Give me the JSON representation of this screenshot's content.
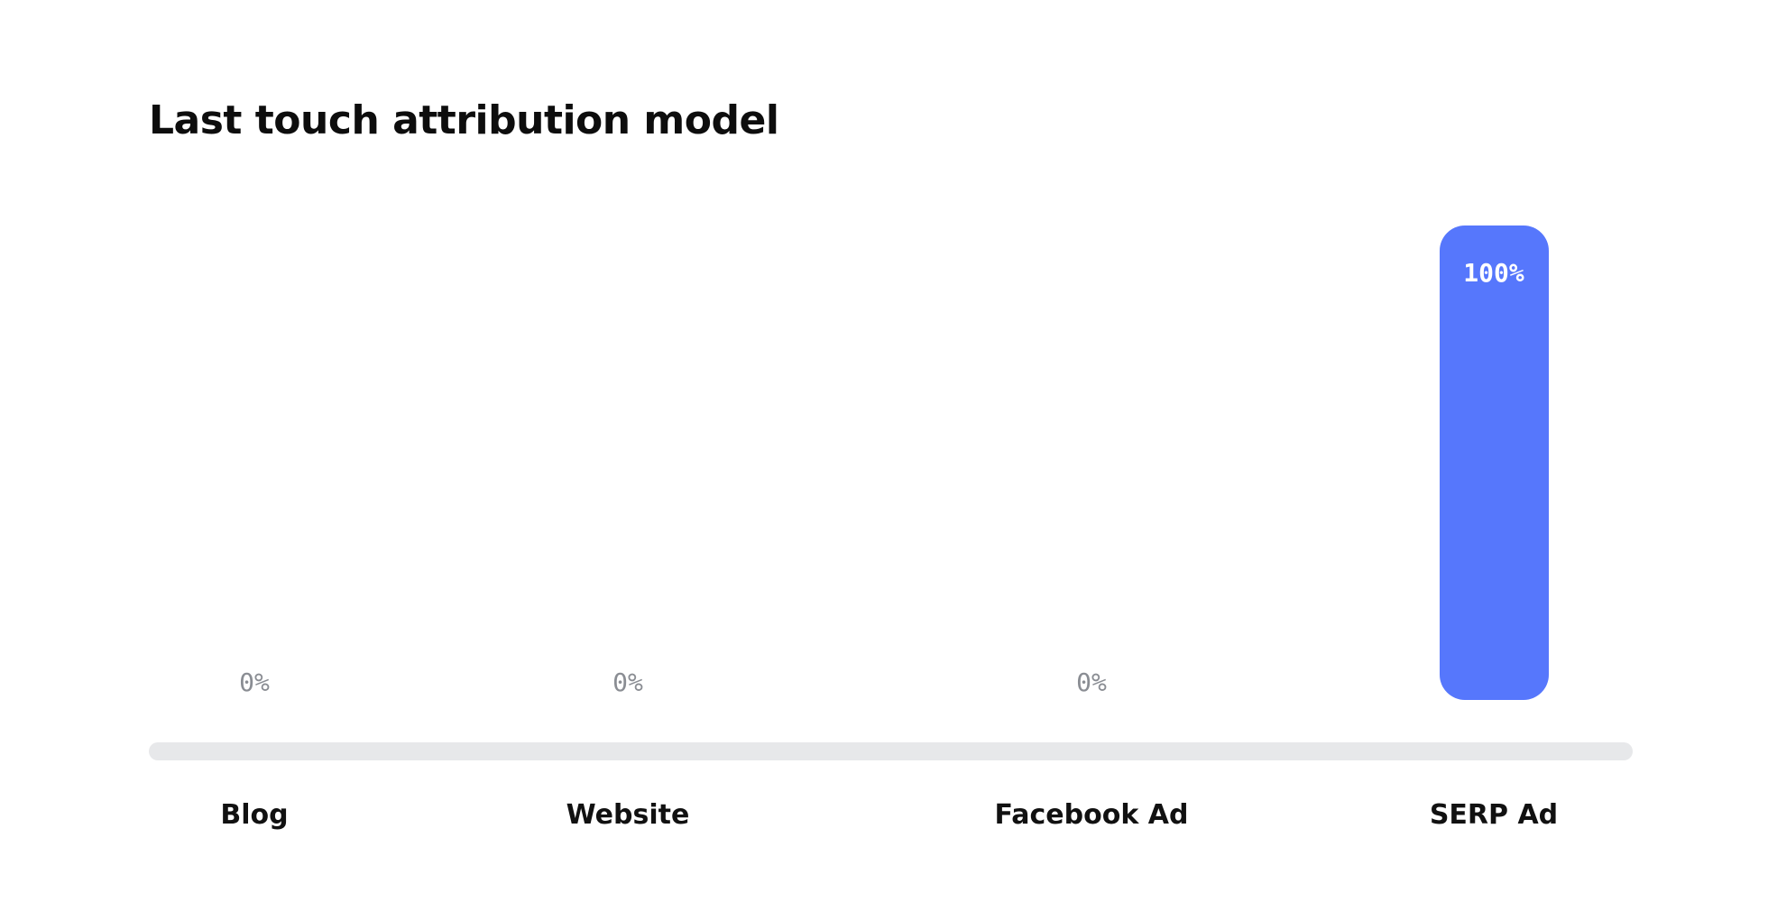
{
  "title": "Last touch attribution model",
  "colors": {
    "bar": "#5677fc",
    "baseline": "#e7e8ea",
    "zero_label": "#8a8d93"
  },
  "chart_data": {
    "type": "bar",
    "title": "Last touch attribution model",
    "categories": [
      "Blog",
      "Website",
      "Facebook Ad",
      "SERP Ad"
    ],
    "values": [
      0,
      0,
      0,
      100
    ],
    "value_labels": [
      "0%",
      "0%",
      "0%",
      "100%"
    ],
    "unit": "%",
    "ylim": [
      0,
      100
    ],
    "grid": false,
    "legend": "none"
  }
}
